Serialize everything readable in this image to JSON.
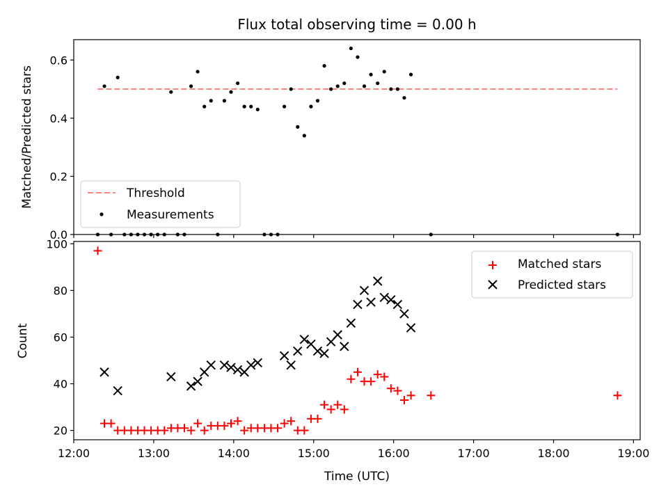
{
  "chart_data": [
    {
      "type": "scatter",
      "title": "Flux total observing time = 0.00 h",
      "xlabel": "",
      "ylabel": "Matched/Predicted stars",
      "xlim": [
        "12:00",
        "19:05"
      ],
      "ylim": [
        0,
        0.67
      ],
      "yticks": [
        "0.0",
        "0.2",
        "0.4",
        "0.6"
      ],
      "ytick_values": [
        0.0,
        0.2,
        0.4,
        0.6
      ],
      "grid": false,
      "legend_position": "lower-left",
      "threshold": {
        "name": "Threshold",
        "value": 0.5,
        "x_start": "12:18",
        "x_end": "18:48",
        "color": "#ff7f7f"
      },
      "series": [
        {
          "name": "Measurements",
          "color": "#000000",
          "points": [
            [
              "12:18",
              0.0
            ],
            [
              "12:23",
              0.51
            ],
            [
              "12:28",
              0.0
            ],
            [
              "12:33",
              0.54
            ],
            [
              "12:38",
              0.0
            ],
            [
              "12:43",
              0.0
            ],
            [
              "12:48",
              0.0
            ],
            [
              "12:53",
              0.0
            ],
            [
              "12:58",
              0.0
            ],
            [
              "13:03",
              0.0
            ],
            [
              "13:08",
              0.0
            ],
            [
              "13:13",
              0.49
            ],
            [
              "13:18",
              0.0
            ],
            [
              "13:23",
              0.0
            ],
            [
              "13:28",
              0.51
            ],
            [
              "13:33",
              0.56
            ],
            [
              "13:38",
              0.44
            ],
            [
              "13:43",
              0.46
            ],
            [
              "13:48",
              0.0
            ],
            [
              "13:53",
              0.46
            ],
            [
              "13:58",
              0.49
            ],
            [
              "14:03",
              0.52
            ],
            [
              "14:08",
              0.44
            ],
            [
              "14:13",
              0.44
            ],
            [
              "14:18",
              0.43
            ],
            [
              "14:23",
              0.0
            ],
            [
              "14:28",
              0.0
            ],
            [
              "14:33",
              0.0
            ],
            [
              "14:38",
              0.44
            ],
            [
              "14:43",
              0.5
            ],
            [
              "14:48",
              0.37
            ],
            [
              "14:53",
              0.34
            ],
            [
              "14:58",
              0.44
            ],
            [
              "15:03",
              0.46
            ],
            [
              "15:08",
              0.58
            ],
            [
              "15:13",
              0.5
            ],
            [
              "15:18",
              0.51
            ],
            [
              "15:23",
              0.52
            ],
            [
              "15:28",
              0.64
            ],
            [
              "15:33",
              0.61
            ],
            [
              "15:38",
              0.51
            ],
            [
              "15:43",
              0.55
            ],
            [
              "15:48",
              0.52
            ],
            [
              "15:53",
              0.56
            ],
            [
              "15:58",
              0.5
            ],
            [
              "16:03",
              0.5
            ],
            [
              "16:08",
              0.47
            ],
            [
              "16:13",
              0.55
            ],
            [
              "16:28",
              0.0
            ],
            [
              "18:48",
              0.0
            ]
          ]
        }
      ]
    },
    {
      "type": "scatter",
      "title": "",
      "xlabel": "Time (UTC)",
      "ylabel": "Count",
      "xlim": [
        "12:00",
        "19:05"
      ],
      "ylim": [
        16,
        101
      ],
      "xticks": [
        "12:00",
        "13:00",
        "14:00",
        "15:00",
        "16:00",
        "17:00",
        "18:00",
        "19:00"
      ],
      "yticks": [
        "20",
        "40",
        "60",
        "80",
        "100"
      ],
      "ytick_values": [
        20,
        40,
        60,
        80,
        100
      ],
      "grid": false,
      "legend_position": "upper-right",
      "series": [
        {
          "name": "Matched stars",
          "marker": "+",
          "color": "#ff0000",
          "points": [
            [
              "12:18",
              97
            ],
            [
              "12:23",
              23
            ],
            [
              "12:28",
              23
            ],
            [
              "12:33",
              20
            ],
            [
              "12:38",
              20
            ],
            [
              "12:43",
              20
            ],
            [
              "12:48",
              20
            ],
            [
              "12:53",
              20
            ],
            [
              "12:58",
              20
            ],
            [
              "13:03",
              20
            ],
            [
              "13:08",
              20
            ],
            [
              "13:13",
              21
            ],
            [
              "13:18",
              21
            ],
            [
              "13:23",
              21
            ],
            [
              "13:28",
              20
            ],
            [
              "13:33",
              23
            ],
            [
              "13:38",
              20
            ],
            [
              "13:43",
              22
            ],
            [
              "13:48",
              22
            ],
            [
              "13:53",
              22
            ],
            [
              "13:58",
              23
            ],
            [
              "14:03",
              24
            ],
            [
              "14:08",
              20
            ],
            [
              "14:13",
              21
            ],
            [
              "14:18",
              21
            ],
            [
              "14:23",
              21
            ],
            [
              "14:28",
              21
            ],
            [
              "14:33",
              21
            ],
            [
              "14:38",
              23
            ],
            [
              "14:43",
              24
            ],
            [
              "14:48",
              20
            ],
            [
              "14:53",
              20
            ],
            [
              "14:58",
              25
            ],
            [
              "15:03",
              25
            ],
            [
              "15:08",
              31
            ],
            [
              "15:13",
              29
            ],
            [
              "15:18",
              31
            ],
            [
              "15:23",
              29
            ],
            [
              "15:28",
              42
            ],
            [
              "15:33",
              45
            ],
            [
              "15:38",
              41
            ],
            [
              "15:43",
              41
            ],
            [
              "15:48",
              44
            ],
            [
              "15:53",
              43
            ],
            [
              "15:58",
              38
            ],
            [
              "16:03",
              37
            ],
            [
              "16:08",
              33
            ],
            [
              "16:13",
              35
            ],
            [
              "16:28",
              35
            ],
            [
              "18:48",
              35
            ]
          ]
        },
        {
          "name": "Predicted stars",
          "marker": "x",
          "color": "#000000",
          "points": [
            [
              "12:23",
              45
            ],
            [
              "12:33",
              37
            ],
            [
              "13:13",
              43
            ],
            [
              "13:28",
              39
            ],
            [
              "13:33",
              41
            ],
            [
              "13:38",
              45
            ],
            [
              "13:43",
              48
            ],
            [
              "13:53",
              48
            ],
            [
              "13:58",
              47
            ],
            [
              "14:03",
              46
            ],
            [
              "14:08",
              45
            ],
            [
              "14:13",
              48
            ],
            [
              "14:18",
              49
            ],
            [
              "14:38",
              52
            ],
            [
              "14:43",
              48
            ],
            [
              "14:48",
              54
            ],
            [
              "14:53",
              59
            ],
            [
              "14:58",
              57
            ],
            [
              "15:03",
              54
            ],
            [
              "15:08",
              53
            ],
            [
              "15:13",
              58
            ],
            [
              "15:18",
              61
            ],
            [
              "15:23",
              56
            ],
            [
              "15:28",
              66
            ],
            [
              "15:33",
              74
            ],
            [
              "15:38",
              80
            ],
            [
              "15:43",
              75
            ],
            [
              "15:48",
              84
            ],
            [
              "15:53",
              77
            ],
            [
              "15:58",
              76
            ],
            [
              "16:03",
              74
            ],
            [
              "16:08",
              70
            ],
            [
              "16:13",
              64
            ]
          ]
        }
      ]
    }
  ]
}
